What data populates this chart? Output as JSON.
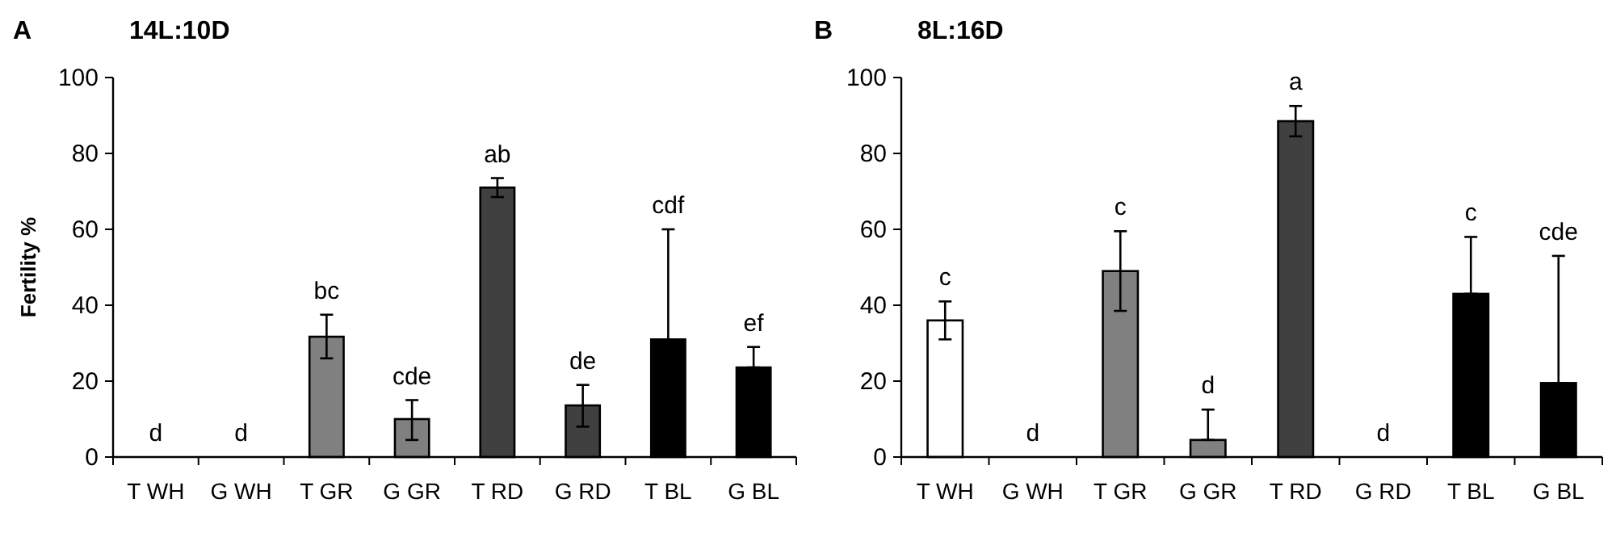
{
  "chart_data": [
    {
      "type": "bar",
      "title": "14L:10D",
      "ylabel": "Fertility %",
      "annotations": [
        "A",
        {
          "text": "d",
          "x": "T WH",
          "y": 0
        },
        {
          "text": "d",
          "x": "G WH",
          "y": 0
        },
        {
          "text": "bc",
          "x": "T GR",
          "y": 37.5
        },
        {
          "text": "cde",
          "x": "G GR",
          "y": 15
        },
        {
          "text": "ab",
          "x": "T RD",
          "y": 73.5
        },
        {
          "text": "de",
          "x": "G RD",
          "y": 19
        },
        {
          "text": "cdf",
          "x": "T BL",
          "y": 60
        },
        {
          "text": "ef",
          "x": "G BL",
          "y": 29
        }
      ],
      "categories": [
        "T WH",
        "G WH",
        "T GR",
        "G GR",
        "T RD",
        "G RD",
        "T BL",
        "G BL"
      ],
      "values": [
        0,
        0,
        31.7,
        10,
        71,
        13.6,
        31,
        23.6
      ],
      "errors": [
        null,
        null,
        [
          26,
          37.5
        ],
        [
          4.5,
          15
        ],
        [
          68.5,
          73.5
        ],
        [
          8,
          19
        ],
        [
          31,
          60
        ],
        [
          23.6,
          29
        ]
      ],
      "colors": [
        "#ffffff",
        "#ffffff",
        "#808080",
        "#808080",
        "#404040",
        "#404040",
        "#000000",
        "#000000"
      ],
      "ylim": [
        0,
        100
      ],
      "yticks": [
        0,
        20,
        40,
        60,
        80,
        100
      ],
      "grid": false
    },
    {
      "type": "bar",
      "title": "8L:16D",
      "annotations": [
        "B",
        {
          "text": "c",
          "x": "T WH",
          "y": 41
        },
        {
          "text": "d",
          "x": "G WH",
          "y": 0
        },
        {
          "text": "c",
          "x": "T GR",
          "y": 59.5
        },
        {
          "text": "d",
          "x": "G GR",
          "y": 12.5
        },
        {
          "text": "a",
          "x": "T RD",
          "y": 92.5
        },
        {
          "text": "d",
          "x": "G RD",
          "y": 0
        },
        {
          "text": "c",
          "x": "T BL",
          "y": 58
        },
        {
          "text": "cde",
          "x": "G BL",
          "y": 53
        }
      ],
      "categories": [
        "T WH",
        "G WH",
        "T GR",
        "G GR",
        "T RD",
        "G RD",
        "T BL",
        "G BL"
      ],
      "values": [
        36,
        0,
        49,
        4.5,
        88.5,
        0,
        43,
        19.5
      ],
      "errors": [
        [
          31,
          41
        ],
        null,
        [
          38.5,
          59.5
        ],
        [
          4.5,
          12.5
        ],
        [
          84.5,
          92.5
        ],
        null,
        [
          43,
          58
        ],
        [
          19.5,
          53
        ]
      ],
      "colors": [
        "#ffffff",
        "#ffffff",
        "#808080",
        "#808080",
        "#404040",
        "#404040",
        "#000000",
        "#000000"
      ],
      "ylim": [
        0,
        100
      ],
      "yticks": [
        0,
        20,
        40,
        60,
        80,
        100
      ],
      "grid": false
    }
  ]
}
